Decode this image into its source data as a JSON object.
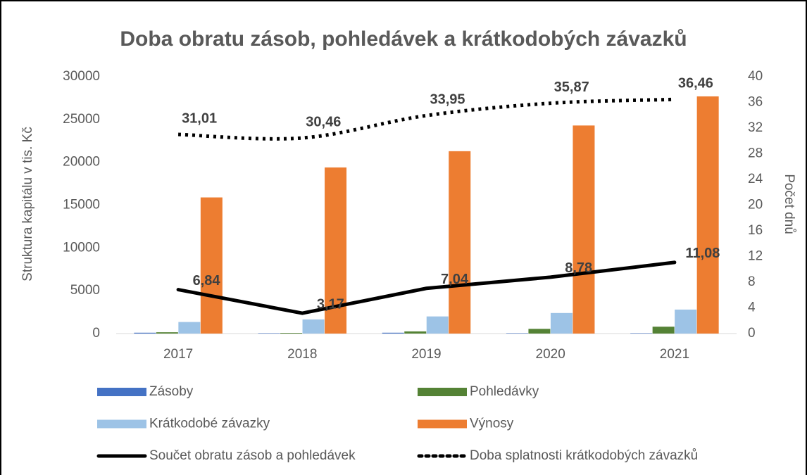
{
  "chart_data": {
    "type": "bar",
    "title": "Doba obratu zásob, pohledávek a krátkodobých závazků",
    "y_label": "Struktura kapitálu v tis. Kč",
    "y2_label": "Počet dnů",
    "categories": [
      "2017",
      "2018",
      "2019",
      "2020",
      "2021"
    ],
    "ylim": [
      0,
      30000
    ],
    "yticks": [
      0,
      5000,
      10000,
      15000,
      20000,
      25000,
      30000
    ],
    "y2lim": [
      0,
      40
    ],
    "y2ticks": [
      0,
      4,
      8,
      12,
      16,
      20,
      24,
      28,
      32,
      36,
      40
    ],
    "grid": false,
    "series": [
      {
        "name": "Zásoby",
        "type": "bar",
        "color": "#4472c4",
        "values": [
          100,
          50,
          100,
          50,
          50
        ]
      },
      {
        "name": "Pohledávky",
        "type": "bar",
        "color": "#548235",
        "values": [
          150,
          80,
          250,
          550,
          800
        ]
      },
      {
        "name": "Krátkodobé závazky",
        "type": "bar",
        "color": "#9dc3e6",
        "values": [
          1350,
          1650,
          2000,
          2400,
          2800
        ]
      },
      {
        "name": "Výnosy",
        "type": "bar",
        "color": "#ed7d31",
        "values": [
          15900,
          19400,
          21300,
          24300,
          27700
        ]
      },
      {
        "name": "Součet obratu zásob a pohledávek",
        "type": "line",
        "axis": "y2",
        "color": "#000000",
        "line_style": "solid",
        "values": [
          6.84,
          3.17,
          7.04,
          8.78,
          11.08
        ],
        "value_labels": [
          "6,84",
          "3,17",
          "7,04",
          "8,78",
          "11,08"
        ]
      },
      {
        "name": "Doba splatnosti krátkodobých závazků",
        "type": "line",
        "axis": "y2",
        "color": "#000000",
        "line_style": "dotted",
        "values": [
          31.01,
          30.46,
          33.95,
          35.87,
          36.46
        ],
        "value_labels": [
          "31,01",
          "30,46",
          "33,95",
          "35,87",
          "36,46"
        ]
      }
    ]
  }
}
